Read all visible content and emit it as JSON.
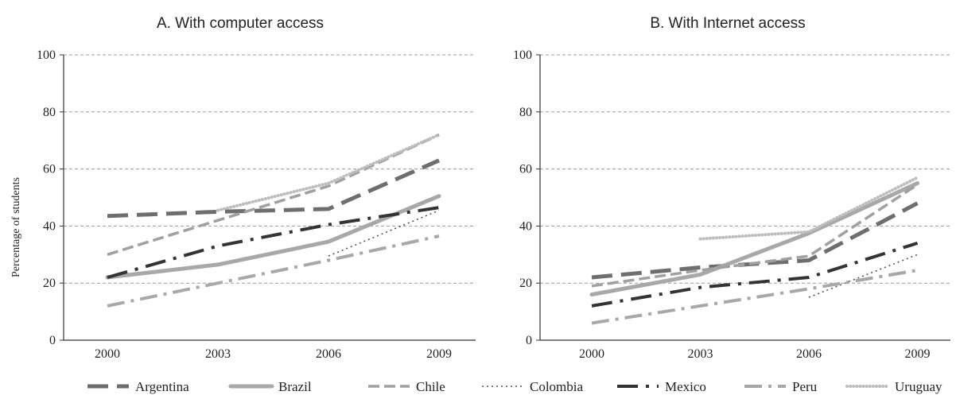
{
  "ylabel": "Percentage of students",
  "categories": [
    "2000",
    "2003",
    "2006",
    "2009"
  ],
  "y_ticks": [
    "0",
    "20",
    "40",
    "60",
    "80",
    "100"
  ],
  "legend": [
    {
      "name": "Argentina"
    },
    {
      "name": "Brazil"
    },
    {
      "name": "Chile"
    },
    {
      "name": "Colombia"
    },
    {
      "name": "Mexico"
    },
    {
      "name": "Peru"
    },
    {
      "name": "Uruguay"
    }
  ],
  "styles": {
    "Argentina": {
      "color": "#6e6e6e",
      "dash": "26 11",
      "width": 5,
      "cap": "butt"
    },
    "Brazil": {
      "color": "#a8a8a8",
      "dash": "",
      "width": 5,
      "cap": "round"
    },
    "Chile": {
      "color": "#a0a0a0",
      "dash": "14 6",
      "width": 3.5,
      "cap": "butt"
    },
    "Colombia": {
      "color": "#555555",
      "dash": "2 4",
      "width": 1.6,
      "cap": "butt"
    },
    "Mexico": {
      "color": "#333333",
      "dash": "26 10 4 10",
      "width": 4,
      "cap": "butt"
    },
    "Peru": {
      "color": "#a8a8a8",
      "dash": "22 8 4 8",
      "width": 4,
      "cap": "butt"
    },
    "Uruguay": {
      "color": "#bdbdbd",
      "dash": "0.1 4",
      "width": 4,
      "cap": "round"
    }
  },
  "chart_data": [
    {
      "type": "line",
      "title": "A. With computer access",
      "ylabel": "Percentage of students",
      "ylim": [
        0,
        100
      ],
      "grid": true,
      "categories": [
        "2000",
        "2003",
        "2006",
        "2009"
      ],
      "series": [
        {
          "name": "Argentina",
          "values": [
            43.5,
            45,
            46,
            63
          ]
        },
        {
          "name": "Brazil",
          "values": [
            22,
            26.5,
            34.5,
            50.5
          ]
        },
        {
          "name": "Chile",
          "values": [
            30,
            42,
            54,
            72
          ]
        },
        {
          "name": "Colombia",
          "values": [
            null,
            null,
            29.5,
            45.5
          ]
        },
        {
          "name": "Mexico",
          "values": [
            22,
            33,
            40.5,
            46.5
          ]
        },
        {
          "name": "Peru",
          "values": [
            12,
            20,
            28,
            36.5
          ]
        },
        {
          "name": "Uruguay",
          "values": [
            null,
            45.5,
            55,
            72
          ]
        }
      ]
    },
    {
      "type": "line",
      "title": "B. With Internet access",
      "ylim": [
        0,
        100
      ],
      "grid": true,
      "categories": [
        "2000",
        "2003",
        "2006",
        "2009"
      ],
      "series": [
        {
          "name": "Argentina",
          "values": [
            22,
            25.5,
            28,
            48
          ]
        },
        {
          "name": "Brazil",
          "values": [
            16,
            23,
            37.5,
            55
          ]
        },
        {
          "name": "Chile",
          "values": [
            19,
            24.5,
            29.5,
            54.5
          ]
        },
        {
          "name": "Colombia",
          "values": [
            null,
            null,
            15,
            30
          ]
        },
        {
          "name": "Mexico",
          "values": [
            12,
            18.5,
            22,
            34
          ]
        },
        {
          "name": "Peru",
          "values": [
            6,
            12,
            18,
            24.5
          ]
        },
        {
          "name": "Uruguay",
          "values": [
            null,
            35.5,
            38,
            57
          ]
        }
      ]
    }
  ]
}
